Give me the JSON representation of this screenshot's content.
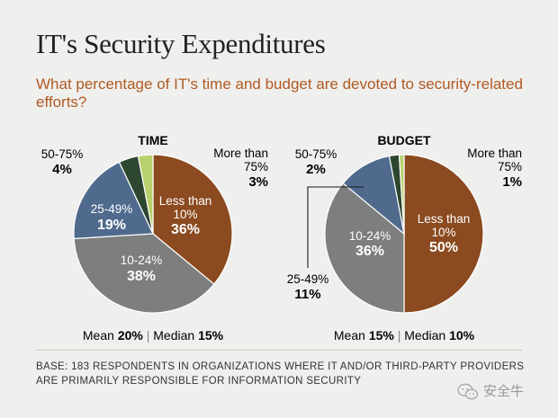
{
  "title": "IT's Security Expenditures",
  "subtitle": "What percentage of IT's time and budget are devoted to security-related efforts?",
  "base_note": "BASE: 183 RESPONDENTS IN ORGANIZATIONS WHERE IT AND/OR THIRD-PARTY PROVIDERS ARE PRIMARILY RESPONSIBLE FOR INFORMATION SECURITY",
  "watermark": "安全牛",
  "colors": {
    "less_than_10": "#8b4a1f",
    "r10_24": "#7c7f7d",
    "r25_49": "#4f6a8d",
    "r50_75": "#2d4630",
    "more_than_75": "#b9d06e"
  },
  "chart_data": [
    {
      "type": "pie",
      "title": "TIME",
      "slices": [
        {
          "label": "Less than 10%",
          "value": 36,
          "value_text": "36%"
        },
        {
          "label": "10-24%",
          "value": 38,
          "value_text": "38%"
        },
        {
          "label": "25-49%",
          "value": 19,
          "value_text": "19%"
        },
        {
          "label": "50-75%",
          "value": 4,
          "value_text": "4%"
        },
        {
          "label": "More than 75%",
          "value": 3,
          "value_text": "3%"
        }
      ],
      "mean_label": "Mean",
      "mean": "20%",
      "median_label": "Median",
      "median": "15%"
    },
    {
      "type": "pie",
      "title": "BUDGET",
      "slices": [
        {
          "label": "Less than 10%",
          "value": 50,
          "value_text": "50%"
        },
        {
          "label": "10-24%",
          "value": 36,
          "value_text": "36%"
        },
        {
          "label": "25-49%",
          "value": 11,
          "value_text": "11%"
        },
        {
          "label": "50-75%",
          "value": 2,
          "value_text": "2%"
        },
        {
          "label": "More than 75%",
          "value": 1,
          "value_text": "1%"
        }
      ],
      "mean_label": "Mean",
      "mean": "15%",
      "median_label": "Median",
      "median": "10%"
    }
  ]
}
